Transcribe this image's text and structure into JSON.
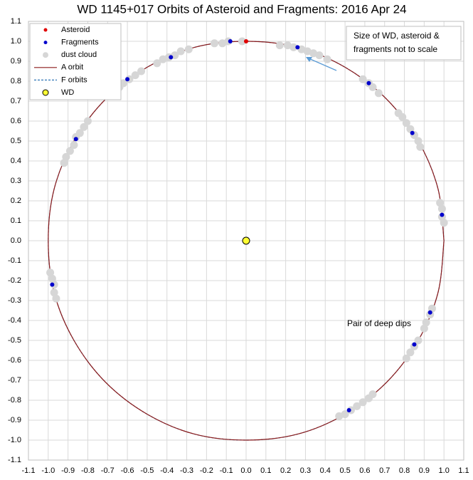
{
  "chart_data": {
    "type": "scatter",
    "title": "WD 1145+017 Orbits of Asteroid and Fragments: 2016 Apr 24",
    "note": [
      "Size of WD, asteroid &",
      "fragments not to scale"
    ],
    "annotation": "Pair of deep dips",
    "xlim": [
      -1.1,
      1.1
    ],
    "ylim": [
      -1.1,
      1.1
    ],
    "grid": true,
    "legend": "top-left",
    "xticks": [
      -1.1,
      {
        "value": -1,
        "label": "-1.0"
      },
      -0.9,
      -0.8,
      -0.7,
      -0.6,
      -0.5,
      -0.4,
      -0.3,
      -0.2,
      -0.1,
      {
        "value": 0,
        "label": "0.0"
      },
      0.1,
      0.2,
      0.3,
      0.4,
      0.5,
      0.6,
      0.7,
      0.8,
      0.9,
      {
        "value": 1,
        "label": "1.0"
      },
      1.1
    ],
    "yticks": [
      -1.1,
      {
        "value": -1,
        "label": "-1.0"
      },
      -0.9,
      -0.8,
      -0.7,
      -0.6,
      -0.5,
      -0.4,
      -0.3,
      -0.2,
      -0.1,
      {
        "value": 0,
        "label": "0.0"
      },
      0.1,
      0.2,
      0.3,
      0.4,
      0.5,
      0.6,
      0.7,
      0.8,
      0.9,
      {
        "value": 1,
        "label": "1.0"
      },
      1.1
    ],
    "series": [
      {
        "name": "Asteroid",
        "kind": "marker",
        "color": "#e00000",
        "x": [
          0
        ],
        "y": [
          1
        ]
      },
      {
        "name": "Fragments",
        "kind": "marker",
        "color": "#0000cc",
        "x": [
          -0.08,
          0.26,
          0.62,
          0.84,
          0.99,
          0.93,
          0.85,
          0.52,
          -0.98,
          -0.86,
          -0.6,
          -0.38
        ],
        "y": [
          1,
          0.97,
          0.79,
          0.54,
          0.13,
          -0.36,
          -0.52,
          -0.85,
          -0.22,
          0.51,
          0.81,
          0.92
        ]
      },
      {
        "name": "dust cloud",
        "kind": "marker",
        "color": "#d6d6d6",
        "x": [
          -0.02,
          -0.09,
          -0.12,
          -0.16,
          0.41,
          0.37,
          0.34,
          0.31,
          0.28,
          0.24,
          0.21,
          0.17,
          0.67,
          0.64,
          0.62,
          0.59,
          0.88,
          0.87,
          0.85,
          0.83,
          0.81,
          0.79,
          0.77,
          1,
          0.99,
          0.99,
          0.98,
          0.94,
          0.93,
          0.91,
          0.9,
          0.87,
          0.85,
          0.83,
          0.81,
          0.64,
          0.62,
          0.59,
          0.56,
          0.53,
          0.5,
          0.47,
          -0.99,
          -0.98,
          -0.97,
          -0.97,
          -0.96,
          -0.8,
          -0.82,
          -0.84,
          -0.86,
          -0.87,
          -0.89,
          -0.91,
          -0.92,
          -0.53,
          -0.56,
          -0.59,
          -0.62,
          -0.64,
          -0.67,
          -0.29,
          -0.33,
          -0.36,
          -0.39,
          -0.42,
          -0.45
        ],
        "y": [
          1,
          1,
          0.99,
          0.99,
          0.91,
          0.93,
          0.94,
          0.95,
          0.96,
          0.97,
          0.98,
          0.98,
          0.74,
          0.77,
          0.79,
          0.81,
          0.47,
          0.5,
          0.53,
          0.56,
          0.59,
          0.62,
          0.64,
          0.09,
          0.12,
          0.16,
          0.19,
          -0.34,
          -0.37,
          -0.41,
          -0.44,
          -0.5,
          -0.53,
          -0.56,
          -0.59,
          -0.77,
          -0.79,
          -0.81,
          -0.83,
          -0.85,
          -0.87,
          -0.88,
          -0.16,
          -0.19,
          -0.22,
          -0.26,
          -0.29,
          0.6,
          0.57,
          0.54,
          0.52,
          0.48,
          0.45,
          0.42,
          0.39,
          0.85,
          0.83,
          0.81,
          0.79,
          0.77,
          0.74,
          0.96,
          0.95,
          0.93,
          0.92,
          0.91,
          0.89
        ]
      },
      {
        "name": "A orbit",
        "kind": "line",
        "color": "#8b1a1a",
        "x": [
          1,
          0.97,
          0.87,
          0.71,
          0.5,
          0.26,
          0,
          -0.26,
          -0.5,
          -0.71,
          -0.87,
          -0.97,
          -1,
          -0.97,
          -0.87,
          -0.71,
          -0.5,
          -0.26,
          0,
          0.26,
          0.5,
          0.71,
          0.87,
          0.97,
          1
        ],
        "y": [
          0,
          0.26,
          0.5,
          0.71,
          0.87,
          0.97,
          1,
          0.97,
          0.87,
          0.71,
          0.5,
          0.26,
          0,
          -0.26,
          -0.5,
          -0.71,
          -0.87,
          -0.97,
          -1,
          -0.97,
          -0.87,
          -0.71,
          -0.5,
          -0.26,
          0
        ]
      },
      {
        "name": "F orbits",
        "kind": "line",
        "style": "dashed",
        "color": "#2e75b6",
        "x": [
          1,
          0.97,
          0.87,
          0.71,
          0.5,
          0.26,
          0,
          -0.26,
          -0.5,
          -0.71,
          -0.87,
          -0.97,
          -1,
          -0.97,
          -0.87,
          -0.71,
          -0.5,
          -0.26,
          0,
          0.26,
          0.5,
          0.71,
          0.87,
          0.97,
          1
        ],
        "y": [
          0,
          0.26,
          0.5,
          0.71,
          0.87,
          0.97,
          1,
          0.97,
          0.87,
          0.71,
          0.5,
          0.26,
          0,
          -0.26,
          -0.5,
          -0.71,
          -0.87,
          -0.97,
          -1,
          -0.97,
          -0.87,
          -0.71,
          -0.5,
          -0.26,
          0
        ]
      },
      {
        "name": "WD",
        "kind": "marker",
        "color": "#ffff33",
        "outline": "#000000",
        "x": [
          0
        ],
        "y": [
          0
        ]
      }
    ]
  }
}
